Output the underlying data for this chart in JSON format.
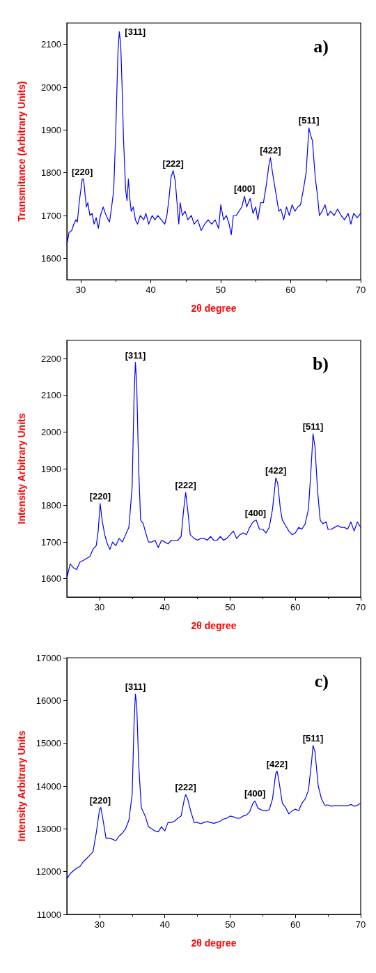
{
  "chart_data": [
    {
      "type": "line",
      "title": "a)",
      "xlabel": "2θ degree",
      "ylabel": "Transmitance (Arbitrary Units)",
      "xlim": [
        28,
        70
      ],
      "ylim": [
        1550,
        2150
      ],
      "xticks": [
        30,
        40,
        50,
        60,
        70
      ],
      "yticks": [
        1600,
        1700,
        1800,
        1900,
        2000,
        2100
      ],
      "series": [
        {
          "color": "#0000ff",
          "x": [
            28,
            28.3,
            28.7,
            29,
            29.3,
            29.5,
            29.8,
            30,
            30.2,
            30.4,
            30.6,
            30.8,
            31,
            31.3,
            31.6,
            31.9,
            32.2,
            32.5,
            32.8,
            33.2,
            33.5,
            33.9,
            34.1,
            34.4,
            34.7,
            35,
            35.3,
            35.5,
            35.7,
            35.9,
            36.1,
            36.4,
            36.6,
            36.8,
            37,
            37.2,
            37.5,
            37.8,
            38.1,
            38.5,
            39,
            39.3,
            39.7,
            40.2,
            40.6,
            41,
            41.5,
            42,
            42.3,
            42.6,
            42.9,
            43.2,
            43.5,
            43.8,
            44,
            44.2,
            44.5,
            44.9,
            45.3,
            45.8,
            46.2,
            46.7,
            47.2,
            47.7,
            48.2,
            48.7,
            49.2,
            49.7,
            50,
            50.4,
            50.8,
            51.2,
            51.5,
            51.8,
            52.2,
            52.6,
            53,
            53.4,
            53.7,
            54.2,
            54.6,
            55,
            55.3,
            55.7,
            56.1,
            56.5,
            56.9,
            57.1,
            57.4,
            57.7,
            58,
            58.3,
            58.6,
            59,
            59.4,
            59.8,
            60.2,
            60.6,
            61,
            61.4,
            61.8,
            62.2,
            62.6,
            62.8,
            63.1,
            63.5,
            63.8,
            64.1,
            64.5,
            64.9,
            65.3,
            65.7,
            66.2,
            66.7,
            67.2,
            67.7,
            68.2,
            68.6,
            69,
            69.5,
            70
          ],
          "values": [
            1630,
            1660,
            1665,
            1680,
            1690,
            1685,
            1735,
            1760,
            1785,
            1785,
            1750,
            1720,
            1730,
            1700,
            1705,
            1680,
            1695,
            1670,
            1700,
            1720,
            1705,
            1690,
            1685,
            1720,
            1760,
            1900,
            2080,
            2130,
            2100,
            2000,
            1880,
            1760,
            1735,
            1785,
            1740,
            1710,
            1720,
            1690,
            1680,
            1700,
            1690,
            1705,
            1680,
            1700,
            1690,
            1700,
            1690,
            1680,
            1700,
            1740,
            1790,
            1805,
            1780,
            1720,
            1680,
            1730,
            1700,
            1710,
            1690,
            1700,
            1680,
            1690,
            1665,
            1680,
            1690,
            1680,
            1690,
            1670,
            1725,
            1690,
            1700,
            1680,
            1655,
            1700,
            1700,
            1710,
            1720,
            1745,
            1720,
            1740,
            1705,
            1720,
            1690,
            1730,
            1730,
            1770,
            1820,
            1835,
            1800,
            1770,
            1740,
            1710,
            1715,
            1690,
            1720,
            1700,
            1725,
            1710,
            1720,
            1725,
            1760,
            1800,
            1905,
            1890,
            1875,
            1790,
            1750,
            1700,
            1710,
            1725,
            1700,
            1710,
            1700,
            1715,
            1700,
            1690,
            1705,
            1680,
            1705,
            1695,
            1705
          ]
        }
      ],
      "annotations": [
        {
          "text": "[220]",
          "x": 30.2,
          "y": 1785
        },
        {
          "text": "[311]",
          "x": 35.5,
          "y": 2130
        },
        {
          "text": "[222]",
          "x": 43.2,
          "y": 1805
        },
        {
          "text": "[400]",
          "x": 53.4,
          "y": 1745
        },
        {
          "text": "[422]",
          "x": 57.1,
          "y": 1835
        },
        {
          "text": "[511]",
          "x": 62.6,
          "y": 1905
        }
      ]
    },
    {
      "type": "line",
      "title": "b)",
      "xlabel": "2θ degree",
      "ylabel": "Intensity Arbitrary Units",
      "xlim": [
        25,
        70
      ],
      "ylim": [
        1550,
        2250
      ],
      "xticks": [
        30,
        40,
        50,
        60,
        70
      ],
      "yticks": [
        1600,
        1700,
        1800,
        1900,
        2000,
        2100,
        2200
      ],
      "series": [
        {
          "color": "#0000ff",
          "x": [
            25,
            25.5,
            26,
            26.5,
            27,
            27.5,
            28,
            28.5,
            29,
            29.5,
            29.8,
            30.1,
            30.4,
            30.8,
            31.2,
            31.6,
            32,
            32.5,
            33,
            33.5,
            34,
            34.5,
            35,
            35.3,
            35.5,
            35.7,
            36,
            36.3,
            36.7,
            37,
            37.5,
            38,
            38.5,
            39,
            39.5,
            40,
            40.5,
            41,
            41.5,
            42,
            42.5,
            42.9,
            43.2,
            43.5,
            43.9,
            44.5,
            45,
            45.5,
            46,
            46.5,
            47,
            47.5,
            48,
            48.5,
            49,
            49.5,
            50,
            50.5,
            51,
            51.5,
            52,
            52.5,
            53,
            53.5,
            54,
            54.5,
            55,
            55.5,
            56,
            56.5,
            57,
            57.3,
            57.7,
            58,
            58.5,
            59,
            59.5,
            60,
            60.5,
            61,
            61.5,
            62,
            62.4,
            62.7,
            63,
            63.4,
            63.8,
            64.2,
            64.7,
            65,
            65.5,
            66,
            66.5,
            67,
            67.5,
            68,
            68.5,
            69,
            69.5,
            70
          ],
          "values": [
            1600,
            1640,
            1630,
            1625,
            1645,
            1650,
            1655,
            1660,
            1680,
            1690,
            1730,
            1805,
            1760,
            1720,
            1695,
            1680,
            1700,
            1690,
            1710,
            1700,
            1720,
            1740,
            1850,
            2100,
            2190,
            2130,
            1900,
            1760,
            1750,
            1730,
            1700,
            1700,
            1705,
            1685,
            1705,
            1700,
            1695,
            1705,
            1705,
            1705,
            1715,
            1790,
            1835,
            1790,
            1720,
            1710,
            1705,
            1710,
            1710,
            1705,
            1715,
            1705,
            1705,
            1715,
            1705,
            1710,
            1720,
            1730,
            1710,
            1720,
            1725,
            1720,
            1740,
            1755,
            1760,
            1735,
            1735,
            1725,
            1740,
            1790,
            1875,
            1860,
            1790,
            1760,
            1745,
            1730,
            1720,
            1725,
            1740,
            1735,
            1750,
            1790,
            1900,
            1995,
            1960,
            1840,
            1760,
            1750,
            1755,
            1735,
            1735,
            1740,
            1745,
            1740,
            1740,
            1735,
            1755,
            1730,
            1755,
            1740
          ]
        }
      ],
      "annotations": [
        {
          "text": "[220]",
          "x": 30.1,
          "y": 1805
        },
        {
          "text": "[311]",
          "x": 35.5,
          "y": 2190
        },
        {
          "text": "[222]",
          "x": 43.2,
          "y": 1835
        },
        {
          "text": "[400]",
          "x": 53.9,
          "y": 1760
        },
        {
          "text": "[422]",
          "x": 57,
          "y": 1875
        },
        {
          "text": "[511]",
          "x": 62.7,
          "y": 1995
        }
      ]
    },
    {
      "type": "line",
      "title": "c)",
      "xlabel": "2θ degree",
      "ylabel": "Intensity Arbitrary Units",
      "xlim": [
        25,
        70
      ],
      "ylim": [
        11000,
        17000
      ],
      "xticks": [
        30,
        40,
        50,
        60,
        70
      ],
      "yticks": [
        11000,
        12000,
        13000,
        14000,
        15000,
        16000,
        17000
      ],
      "series": [
        {
          "color": "#0000ff",
          "x": [
            25,
            25.5,
            26,
            26.5,
            27,
            27.5,
            28,
            28.5,
            29,
            29.5,
            30,
            30.2,
            30.5,
            31,
            31.5,
            32,
            32.5,
            33,
            33.5,
            34,
            34.5,
            35,
            35.3,
            35.5,
            35.7,
            36,
            36.4,
            37,
            37.5,
            38,
            38.5,
            39,
            39.5,
            40,
            40.5,
            41,
            41.5,
            42,
            42.5,
            43,
            43.2,
            43.5,
            44,
            44.5,
            45,
            45.5,
            46,
            46.5,
            47,
            47.5,
            48,
            48.5,
            49,
            49.5,
            50,
            50.5,
            51,
            51.5,
            52,
            52.5,
            53,
            53.5,
            53.8,
            54.3,
            55,
            55.5,
            56,
            56.5,
            57,
            57.2,
            57.5,
            58,
            58.5,
            59,
            59.5,
            60,
            60.5,
            61,
            61.5,
            62,
            62.5,
            62.7,
            63,
            63.5,
            64,
            64.5,
            65,
            65.5,
            66,
            67,
            67.5,
            68,
            68.5,
            69,
            69.5,
            70
          ],
          "values": [
            11830,
            11950,
            12020,
            12080,
            12120,
            12230,
            12300,
            12380,
            12460,
            12900,
            13450,
            13500,
            13250,
            12780,
            12780,
            12760,
            12720,
            12830,
            12900,
            13000,
            13200,
            13800,
            15500,
            16150,
            15900,
            14500,
            13500,
            13300,
            13050,
            13000,
            12950,
            12930,
            13050,
            12950,
            13150,
            13150,
            13180,
            13250,
            13300,
            13700,
            13800,
            13700,
            13400,
            13150,
            13150,
            13120,
            13150,
            13170,
            13150,
            13130,
            13150,
            13180,
            13230,
            13250,
            13300,
            13280,
            13250,
            13250,
            13300,
            13320,
            13400,
            13600,
            13650,
            13480,
            13430,
            13420,
            13450,
            13700,
            14300,
            14350,
            14100,
            13600,
            13500,
            13350,
            13420,
            13460,
            13420,
            13600,
            13700,
            13900,
            14600,
            14950,
            14800,
            14000,
            13700,
            13550,
            13560,
            13530,
            13540,
            13540,
            13540,
            13540,
            13570,
            13530,
            13550,
            13600
          ]
        }
      ],
      "annotations": [
        {
          "text": "[220]",
          "x": 30.1,
          "y": 13500
        },
        {
          "text": "[311]",
          "x": 35.5,
          "y": 16150
        },
        {
          "text": "[222]",
          "x": 43.2,
          "y": 13800
        },
        {
          "text": "[400]",
          "x": 53.8,
          "y": 13650
        },
        {
          "text": "[422]",
          "x": 57.2,
          "y": 14350
        },
        {
          "text": "[511]",
          "x": 62.7,
          "y": 14950
        }
      ]
    }
  ]
}
